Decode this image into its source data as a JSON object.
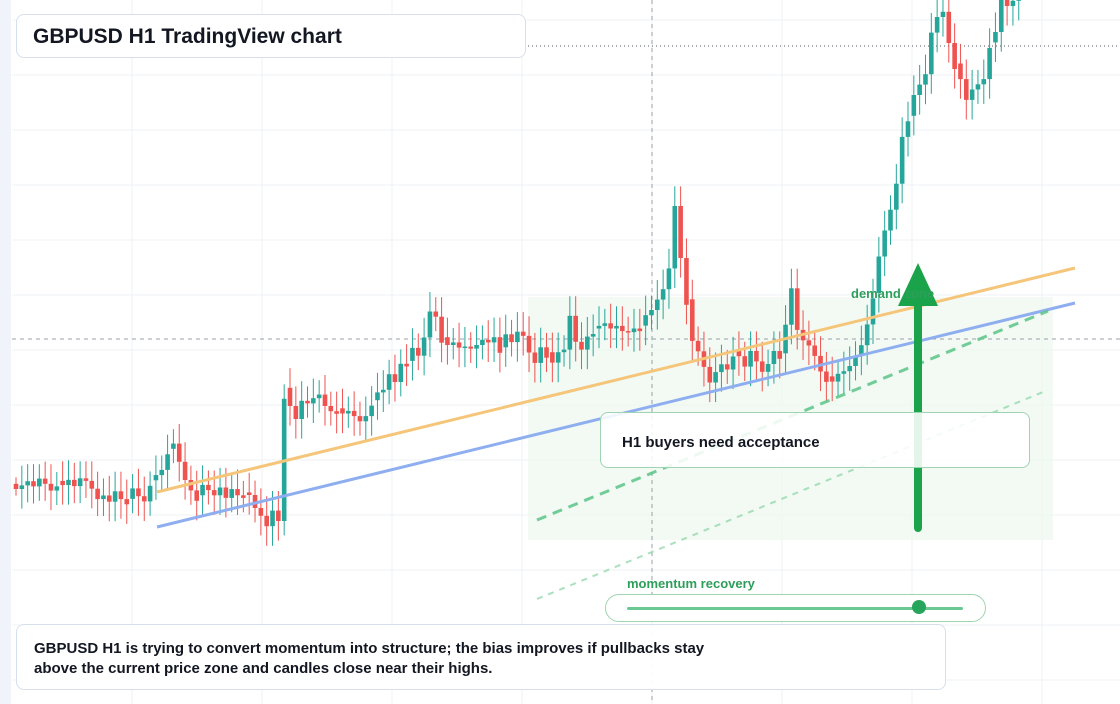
{
  "title": "GBPUSD H1 TradingView chart",
  "annotations": {
    "zone_label": "demand zone",
    "note": "H1 buyers need acceptance",
    "slider_label": "momentum recovery",
    "caption": "GBPUSD H1 is trying to convert momentum into structure; the bias improves if pullbacks stay above the current price zone and candles close near their highs."
  },
  "colors": {
    "bull": "#26a69a",
    "bear": "#ef5350",
    "trend_orange": "#f5c57a",
    "trend_blue": "#8eaef0",
    "accent_green": "#2e9e5b",
    "arrow_green": "#1aa34a",
    "zone_fill": "#eef8ef"
  },
  "chart_data": {
    "type": "candlestick",
    "symbol": "GBPUSD",
    "timeframe": "H1",
    "y_range": [
      0,
      700
    ],
    "candles": [
      [
        40,
        -0.15,
        -0.25,
        0.05
      ],
      [
        40,
        -0.25,
        -0.18,
        0.3
      ],
      [
        40,
        -0.18,
        -0.1,
        0.25
      ],
      [
        40,
        -0.1,
        -0.2,
        0.25
      ],
      [
        40,
        -0.2,
        -0.05,
        0.2
      ],
      [
        40,
        -0.05,
        -0.15,
        0.25
      ],
      [
        40,
        -0.15,
        -0.28,
        0.3
      ],
      [
        40,
        -0.28,
        -0.2,
        0.2
      ],
      [
        45,
        -0.2,
        -0.28,
        0.3
      ],
      [
        45,
        -0.28,
        -0.18,
        0.3
      ],
      [
        45,
        -0.18,
        -0.3,
        0.25
      ],
      [
        45,
        -0.3,
        -0.15,
        0.25
      ],
      [
        45,
        -0.15,
        -0.2,
        0.25
      ],
      [
        45,
        -0.2,
        -0.35,
        0.3
      ],
      [
        45,
        -0.35,
        -0.55,
        0.25
      ],
      [
        45,
        -0.55,
        -0.48,
        0.25
      ],
      [
        45,
        -0.48,
        -0.6,
        0.3
      ],
      [
        45,
        -0.6,
        -0.4,
        0.3
      ],
      [
        45,
        -0.4,
        -0.55,
        0.3
      ],
      [
        45,
        -0.55,
        -0.65,
        0.3
      ],
      [
        50,
        -0.65,
        -0.45,
        0.2
      ],
      [
        50,
        -0.45,
        -0.6,
        0.3
      ],
      [
        50,
        -0.6,
        -0.7,
        0.3
      ],
      [
        50,
        -0.7,
        -0.4,
        0.2
      ],
      [
        55,
        -0.4,
        -0.3,
        0.3
      ],
      [
        55,
        -0.3,
        -0.2,
        0.2
      ],
      [
        55,
        -0.2,
        0.1,
        0.3
      ],
      [
        60,
        0.1,
        0.2,
        0.2
      ],
      [
        60,
        0.2,
        -0.15,
        0.3
      ],
      [
        60,
        -0.15,
        -0.5,
        0.3
      ],
      [
        60,
        -0.5,
        -0.7,
        0.2
      ],
      [
        60,
        -0.7,
        -0.9,
        0.3
      ],
      [
        65,
        -0.9,
        -0.7,
        0.3
      ],
      [
        65,
        -0.7,
        -0.8,
        0.2
      ],
      [
        65,
        -0.8,
        -0.9,
        0.3
      ],
      [
        65,
        -0.9,
        -0.75,
        0.3
      ],
      [
        65,
        -0.75,
        -0.95,
        0.3
      ],
      [
        65,
        -0.95,
        -0.78,
        0.2
      ],
      [
        65,
        -0.78,
        -0.9,
        0.3
      ],
      [
        65,
        -0.9,
        -0.95,
        0.2
      ],
      [
        70,
        -0.95,
        -1.0,
        0.3
      ],
      [
        70,
        -1.0,
        -1.25,
        0.2
      ],
      [
        70,
        -1.25,
        -1.4,
        0.3
      ],
      [
        70,
        -1.4,
        -1.6,
        0.3
      ],
      [
        70,
        -1.6,
        -1.3,
        0.3
      ],
      [
        70,
        -1.3,
        -1.5,
        0.3
      ],
      [
        70,
        -1.5,
        0.85,
        0.2
      ],
      [
        80,
        0.85,
        0.5,
        0.3
      ],
      [
        80,
        0.5,
        0.25,
        0.3
      ],
      [
        80,
        0.25,
        0.6,
        0.3
      ],
      [
        80,
        0.6,
        0.55,
        0.2
      ],
      [
        80,
        0.55,
        0.65,
        0.3
      ],
      [
        80,
        0.65,
        0.72,
        0.2
      ],
      [
        80,
        0.72,
        0.5,
        0.3
      ],
      [
        80,
        0.5,
        0.4,
        0.2
      ],
      [
        80,
        0.4,
        0.35,
        0.3
      ],
      [
        85,
        0.35,
        0.25,
        0.3
      ],
      [
        85,
        0.25,
        0.3,
        0.2
      ],
      [
        85,
        0.3,
        0.2,
        0.3
      ],
      [
        85,
        0.2,
        0.1,
        0.2
      ],
      [
        85,
        0.1,
        0.2,
        0.3
      ],
      [
        85,
        0.2,
        0.4,
        0.3
      ],
      [
        90,
        0.4,
        0.55,
        0.3
      ],
      [
        90,
        0.55,
        0.6,
        0.3
      ],
      [
        90,
        0.6,
        0.9,
        0.2
      ],
      [
        90,
        0.9,
        0.75,
        0.3
      ],
      [
        90,
        0.75,
        1.1,
        0.2
      ],
      [
        90,
        1.1,
        1.05,
        0.3
      ],
      [
        95,
        1.05,
        1.3,
        0.3
      ],
      [
        95,
        1.3,
        1.15,
        0.2
      ],
      [
        95,
        1.15,
        1.5,
        0.3
      ],
      [
        95,
        1.5,
        2.0,
        0.3
      ],
      [
        95,
        2.0,
        1.9,
        0.2
      ],
      [
        95,
        1.9,
        1.4,
        0.3
      ],
      [
        100,
        1.4,
        1.25,
        0.3
      ],
      [
        100,
        1.25,
        1.3,
        0.2
      ],
      [
        100,
        1.3,
        1.2,
        0.3
      ],
      [
        100,
        1.2,
        1.22,
        0.3
      ],
      [
        100,
        1.22,
        1.18,
        0.2
      ],
      [
        100,
        1.18,
        1.25,
        0.3
      ],
      [
        100,
        1.25,
        1.35,
        0.2
      ],
      [
        100,
        1.35,
        1.3,
        0.3
      ],
      [
        100,
        1.3,
        1.4,
        0.3
      ],
      [
        100,
        1.4,
        1.1,
        0.3
      ],
      [
        105,
        1.1,
        1.35,
        0.3
      ],
      [
        105,
        1.35,
        1.2,
        0.2
      ],
      [
        105,
        1.2,
        1.4,
        0.3
      ],
      [
        105,
        1.4,
        1.32,
        0.3
      ],
      [
        105,
        1.32,
        1.0,
        0.3
      ],
      [
        105,
        1.0,
        0.8,
        0.3
      ],
      [
        105,
        0.8,
        1.1,
        0.3
      ],
      [
        105,
        1.1,
        0.9,
        0.2
      ],
      [
        110,
        0.9,
        0.7,
        0.3
      ],
      [
        110,
        0.7,
        0.9,
        0.3
      ],
      [
        110,
        0.9,
        0.95,
        0.2
      ],
      [
        110,
        0.95,
        1.6,
        0.3
      ],
      [
        110,
        1.6,
        1.1,
        0.3
      ],
      [
        110,
        1.1,
        0.95,
        0.3
      ],
      [
        110,
        0.95,
        1.2,
        0.3
      ],
      [
        110,
        1.2,
        1.25,
        0.3
      ],
      [
        115,
        1.25,
        1.3,
        0.3
      ],
      [
        115,
        1.3,
        1.35,
        0.2
      ],
      [
        115,
        1.35,
        1.25,
        0.3
      ],
      [
        115,
        1.25,
        1.3,
        0.3
      ],
      [
        115,
        1.3,
        1.2,
        0.3
      ],
      [
        115,
        1.2,
        1.18,
        0.2
      ],
      [
        115,
        1.18,
        1.25,
        0.3
      ],
      [
        115,
        1.25,
        1.2,
        0.3
      ],
      [
        120,
        1.2,
        1.4,
        0.3
      ],
      [
        120,
        1.4,
        1.5,
        0.2
      ],
      [
        120,
        1.5,
        1.7,
        0.3
      ],
      [
        120,
        1.7,
        1.9,
        0.3
      ],
      [
        120,
        1.9,
        2.3,
        0.3
      ],
      [
        120,
        2.3,
        3.5,
        0.3
      ],
      [
        120,
        3.5,
        2.5,
        0.3
      ],
      [
        120,
        2.5,
        1.6,
        0.3
      ],
      [
        125,
        1.6,
        0.8,
        0.3
      ],
      [
        125,
        0.8,
        0.6,
        0.2
      ],
      [
        125,
        0.6,
        0.3,
        0.3
      ],
      [
        125,
        0.3,
        0.0,
        0.3
      ],
      [
        125,
        0.0,
        0.2,
        0.3
      ],
      [
        125,
        0.2,
        0.35,
        0.3
      ],
      [
        125,
        0.35,
        0.25,
        0.2
      ],
      [
        125,
        0.25,
        0.5,
        0.3
      ],
      [
        130,
        0.5,
        0.4,
        0.3
      ],
      [
        130,
        0.4,
        0.2,
        0.2
      ],
      [
        130,
        0.2,
        0.5,
        0.3
      ],
      [
        130,
        0.5,
        0.3,
        0.3
      ],
      [
        130,
        0.3,
        0.1,
        0.3
      ],
      [
        130,
        0.1,
        0.25,
        0.2
      ],
      [
        130,
        0.25,
        0.5,
        0.3
      ],
      [
        130,
        0.5,
        0.35,
        0.3
      ],
      [
        135,
        0.35,
        0.9,
        0.3
      ],
      [
        135,
        0.9,
        1.6,
        0.3
      ],
      [
        135,
        1.6,
        0.8,
        0.3
      ],
      [
        135,
        0.8,
        0.6,
        0.3
      ],
      [
        135,
        0.6,
        0.5,
        0.3
      ],
      [
        135,
        0.5,
        0.3,
        0.2
      ],
      [
        135,
        0.3,
        0.0,
        0.3
      ],
      [
        135,
        0.0,
        -0.2,
        0.3
      ],
      [
        140,
        -0.2,
        -0.3,
        0.3
      ],
      [
        140,
        -0.3,
        -0.15,
        0.2
      ],
      [
        140,
        -0.15,
        -0.1,
        0.3
      ],
      [
        140,
        -0.1,
        0.0,
        0.3
      ],
      [
        140,
        0.0,
        0.2,
        0.2
      ],
      [
        140,
        0.2,
        0.4,
        0.3
      ],
      [
        140,
        0.4,
        0.8,
        0.3
      ],
      [
        140,
        0.8,
        1.3,
        0.3
      ],
      [
        145,
        1.3,
        2.0,
        0.3
      ],
      [
        145,
        2.0,
        2.5,
        0.3
      ],
      [
        145,
        2.5,
        2.9,
        0.2
      ],
      [
        145,
        2.9,
        3.4,
        0.3
      ],
      [
        145,
        3.4,
        4.3,
        0.3
      ],
      [
        145,
        4.3,
        4.6,
        0.3
      ],
      [
        150,
        4.6,
        5.0,
        0.3
      ],
      [
        150,
        5.0,
        5.2,
        0.3
      ],
      [
        150,
        5.2,
        5.4,
        0.3
      ],
      [
        150,
        5.4,
        6.2,
        0.3
      ],
      [
        150,
        6.2,
        6.5,
        0.3
      ],
      [
        150,
        6.5,
        6.6,
        0.3
      ],
      [
        150,
        6.6,
        6.0,
        0.3
      ],
      [
        150,
        6.0,
        5.5,
        0.3
      ],
      [
        155,
        5.5,
        5.2,
        0.3
      ],
      [
        155,
        5.2,
        4.8,
        0.3
      ],
      [
        155,
        4.8,
        5.0,
        0.3
      ],
      [
        155,
        5.0,
        5.1,
        0.2
      ],
      [
        155,
        5.1,
        5.2,
        0.3
      ],
      [
        155,
        5.2,
        5.8,
        0.3
      ],
      [
        160,
        5.8,
        6.0,
        0.3
      ],
      [
        160,
        6.0,
        6.8,
        0.3
      ],
      [
        160,
        6.8,
        6.5,
        0.3
      ],
      [
        160,
        6.5,
        6.6,
        0.3
      ],
      [
        160,
        6.6,
        6.8,
        0.3
      ]
    ]
  }
}
